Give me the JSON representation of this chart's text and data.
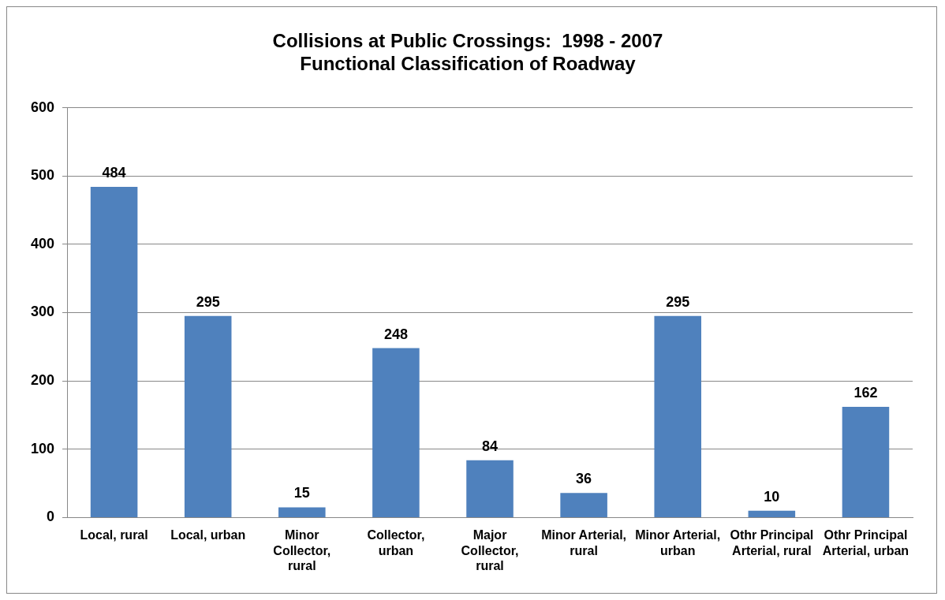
{
  "chart_data": {
    "type": "bar",
    "title": "Collisions at Public Crossings:  1998 - 2007",
    "subtitle": "Functional Classification of Roadway",
    "categories": [
      "Local, rural",
      "Local, urban",
      "Minor Collector, rural",
      "Collector, urban",
      "Major Collector, rural",
      "Minor Arterial, rural",
      "Minor Arterial, urban",
      "Othr Principal Arterial, rural",
      "Othr Principal Arterial, urban"
    ],
    "values": [
      484,
      295,
      15,
      248,
      84,
      36,
      295,
      10,
      162
    ],
    "color": "#4f81bd",
    "ylim": [
      0,
      600
    ],
    "yticks": [
      0,
      100,
      200,
      300,
      400,
      500,
      600
    ],
    "grid": "y",
    "data_labels": true,
    "legend": false
  }
}
